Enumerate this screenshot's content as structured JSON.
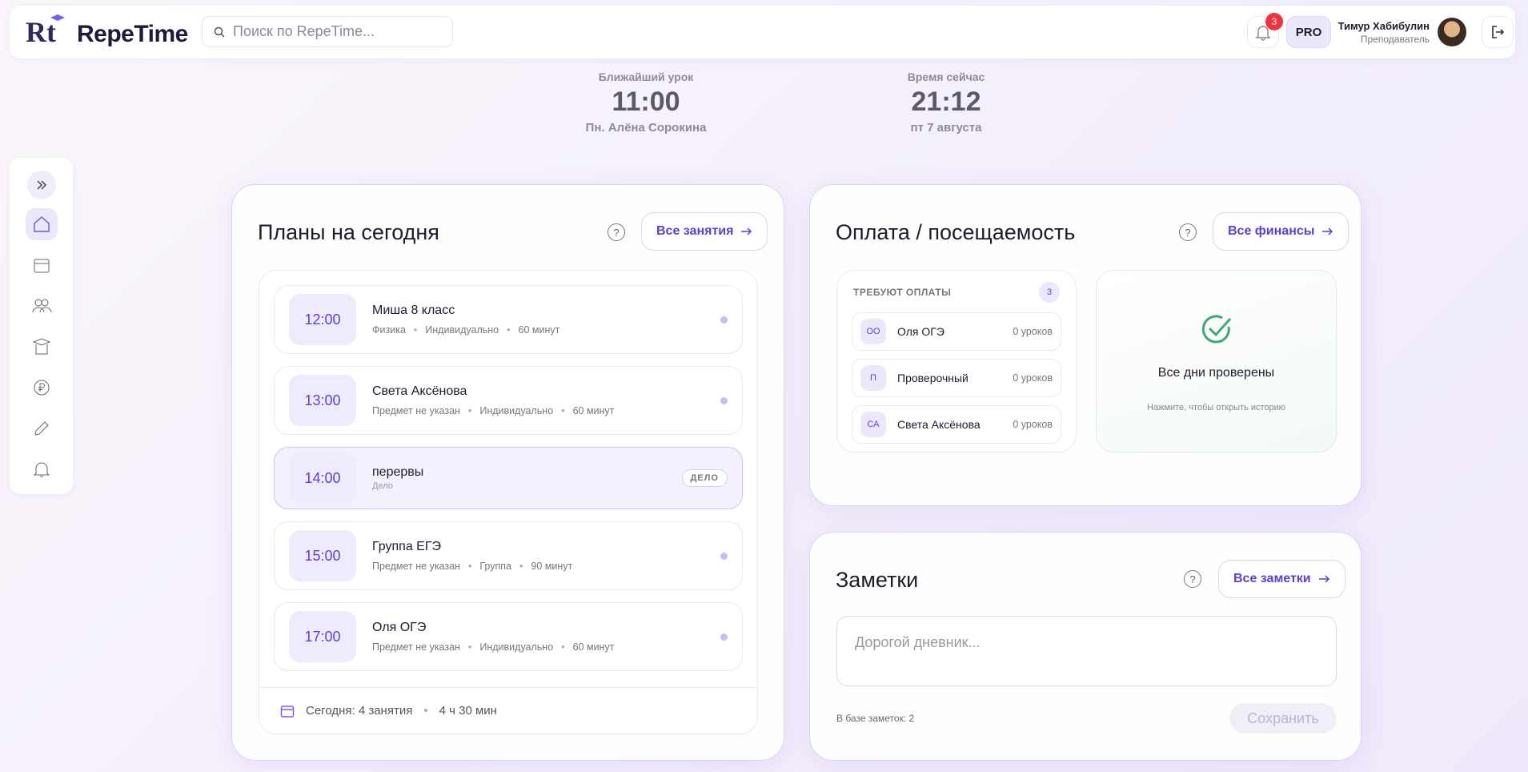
{
  "header": {
    "logo_mark": "Rt",
    "logo": "RepeTime",
    "search_placeholder": "Поиск по RepeTime...",
    "notifications_count": "3",
    "badge": "PRO",
    "user_name": "Тимур Хабибулин",
    "user_role": "Преподаватель"
  },
  "info": [
    {
      "label": "Ближайший урок",
      "time": "11:00",
      "detail": "Пн. Алёна Сорокина"
    },
    {
      "label": "Время сейчас",
      "time": "21:12",
      "detail": "пт 7 августа"
    }
  ],
  "plans": {
    "title": "Планы на сегодня",
    "button": "Все занятия",
    "lessons": [
      {
        "time": "12:00",
        "name": "Миша 8 класс",
        "meta": [
          "Физика",
          "Индивидуально",
          "60 минут"
        ]
      },
      {
        "time": "13:00",
        "name": "Света Аксёнова",
        "meta": [
          "Предмет не указан",
          "Индивидуально",
          "60 минут"
        ]
      },
      {
        "time": "14:00",
        "name": "перервы",
        "subtitle": "Дело",
        "tag": "ДЕЛО"
      },
      {
        "time": "15:00",
        "name": "Группа ЕГЭ",
        "meta": [
          "Предмет не указан",
          "Группа",
          "90 минут"
        ]
      },
      {
        "time": "17:00",
        "name": "Оля ОГЭ",
        "meta": [
          "Предмет не указан",
          "Индивидуально",
          "60 минут"
        ]
      }
    ],
    "footer_count": "Сегодня: 4 занятия",
    "footer_duration": "4 ч 30 мин"
  },
  "payments": {
    "title": "Оплата / посещаемость",
    "button": "Все финансы",
    "section": "ТРЕБУЮТ ОПЛАТЫ",
    "count": "3",
    "items": [
      {
        "initials": "ОО",
        "name": "Оля ОГЭ",
        "lessons": "0 уроков"
      },
      {
        "initials": "П",
        "name": "Проверочный",
        "lessons": "0 уроков"
      },
      {
        "initials": "СА",
        "name": "Света Аксёнова",
        "lessons": "0 уроков"
      }
    ],
    "checked_title": "Все дни проверены",
    "checked_hint": "Нажмите, чтобы открыть историю"
  },
  "notes": {
    "title": "Заметки",
    "button": "Все заметки",
    "placeholder": "Дорогой дневник...",
    "count": "В базе заметок: 2",
    "save": "Сохранить"
  }
}
